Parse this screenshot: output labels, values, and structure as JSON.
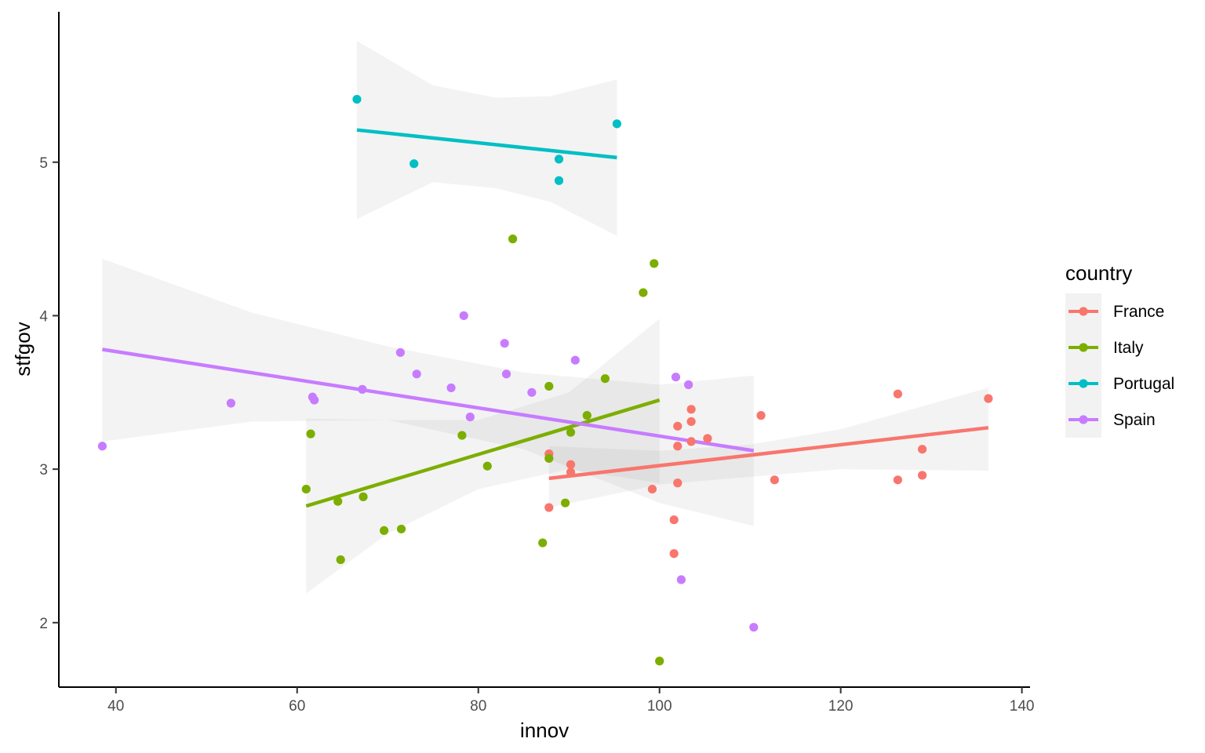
{
  "chart_data": {
    "type": "scatter",
    "title": "",
    "xlabel": "innov",
    "ylabel": "stfgov",
    "xlim": [
      33.7,
      140.9
    ],
    "ylim": [
      1.58,
      5.98
    ],
    "x_ticks": [
      40,
      60,
      80,
      100,
      120,
      140
    ],
    "y_ticks": [
      2,
      3,
      4,
      5
    ],
    "grid": false,
    "legend": {
      "title": "country",
      "position": "right"
    },
    "fit": "linear regression with 95% confidence band per series",
    "series": [
      {
        "name": "France",
        "color": "#F8766D",
        "points": [
          [
            87.8,
            3.1
          ],
          [
            87.8,
            2.75
          ],
          [
            90.2,
            3.03
          ],
          [
            90.2,
            2.98
          ],
          [
            99.2,
            2.87
          ],
          [
            101.6,
            2.67
          ],
          [
            101.6,
            2.45
          ],
          [
            102.0,
            3.28
          ],
          [
            102.0,
            3.15
          ],
          [
            102.0,
            2.91
          ],
          [
            103.5,
            3.39
          ],
          [
            103.5,
            3.31
          ],
          [
            103.5,
            3.18
          ],
          [
            105.3,
            3.2
          ],
          [
            111.2,
            3.35
          ],
          [
            112.7,
            2.93
          ],
          [
            126.3,
            3.49
          ],
          [
            126.3,
            2.93
          ],
          [
            129.0,
            3.13
          ],
          [
            129.0,
            2.96
          ],
          [
            136.3,
            3.46
          ]
        ],
        "fit_line": [
          [
            87.8,
            2.94
          ],
          [
            136.3,
            3.27
          ]
        ],
        "band_x": [
          87.8,
          100,
          110,
          120,
          136.3
        ],
        "band_upper": [
          3.15,
          3.12,
          3.16,
          3.26,
          3.53
        ],
        "band_lower": [
          2.75,
          2.9,
          2.95,
          3.0,
          2.99
        ]
      },
      {
        "name": "Italy",
        "color": "#7CAE00",
        "points": [
          [
            61.0,
            2.87
          ],
          [
            61.5,
            3.23
          ],
          [
            64.5,
            2.79
          ],
          [
            64.8,
            2.41
          ],
          [
            67.3,
            2.82
          ],
          [
            69.6,
            2.6
          ],
          [
            71.5,
            2.61
          ],
          [
            78.2,
            3.22
          ],
          [
            81.0,
            3.02
          ],
          [
            83.8,
            4.5
          ],
          [
            87.1,
            2.52
          ],
          [
            87.8,
            3.54
          ],
          [
            87.8,
            3.07
          ],
          [
            89.6,
            2.78
          ],
          [
            90.2,
            3.24
          ],
          [
            92.0,
            3.35
          ],
          [
            94.0,
            3.59
          ],
          [
            98.2,
            4.15
          ],
          [
            99.4,
            4.34
          ],
          [
            100.0,
            1.75
          ]
        ],
        "fit_line": [
          [
            61.0,
            2.76
          ],
          [
            100.0,
            3.45
          ]
        ],
        "band_x": [
          61.0,
          70,
          80,
          90,
          100.0
        ],
        "band_upper": [
          3.33,
          3.32,
          3.32,
          3.5,
          3.98
        ],
        "band_lower": [
          2.19,
          2.58,
          2.87,
          3.0,
          2.91
        ]
      },
      {
        "name": "Portugal",
        "color": "#00BFC4",
        "points": [
          [
            66.6,
            5.41
          ],
          [
            72.9,
            4.99
          ],
          [
            88.9,
            5.02
          ],
          [
            88.9,
            4.88
          ],
          [
            95.3,
            5.25
          ]
        ],
        "fit_line": [
          [
            66.6,
            5.21
          ],
          [
            95.3,
            5.03
          ]
        ],
        "band_x": [
          66.6,
          75,
          82,
          88,
          95.3
        ],
        "band_upper": [
          5.79,
          5.5,
          5.42,
          5.43,
          5.54
        ],
        "band_lower": [
          4.63,
          4.87,
          4.83,
          4.74,
          4.52
        ]
      },
      {
        "name": "Spain",
        "color": "#C77CFF",
        "points": [
          [
            38.5,
            3.15
          ],
          [
            52.7,
            3.43
          ],
          [
            61.7,
            3.47
          ],
          [
            61.9,
            3.45
          ],
          [
            67.2,
            3.52
          ],
          [
            71.4,
            3.76
          ],
          [
            73.2,
            3.62
          ],
          [
            77.0,
            3.53
          ],
          [
            78.4,
            4.0
          ],
          [
            79.1,
            3.34
          ],
          [
            82.9,
            3.82
          ],
          [
            83.1,
            3.62
          ],
          [
            85.9,
            3.5
          ],
          [
            90.7,
            3.71
          ],
          [
            101.8,
            3.6
          ],
          [
            102.4,
            2.28
          ],
          [
            103.2,
            3.55
          ],
          [
            110.4,
            1.97
          ]
        ],
        "fit_line": [
          [
            38.5,
            3.78
          ],
          [
            110.4,
            3.12
          ]
        ],
        "band_x": [
          38.5,
          55,
          70,
          85,
          100,
          110.4
        ],
        "band_upper": [
          4.37,
          4.02,
          3.8,
          3.63,
          3.55,
          3.61
        ],
        "band_lower": [
          3.18,
          3.31,
          3.32,
          3.13,
          2.78,
          2.63
        ]
      }
    ]
  }
}
